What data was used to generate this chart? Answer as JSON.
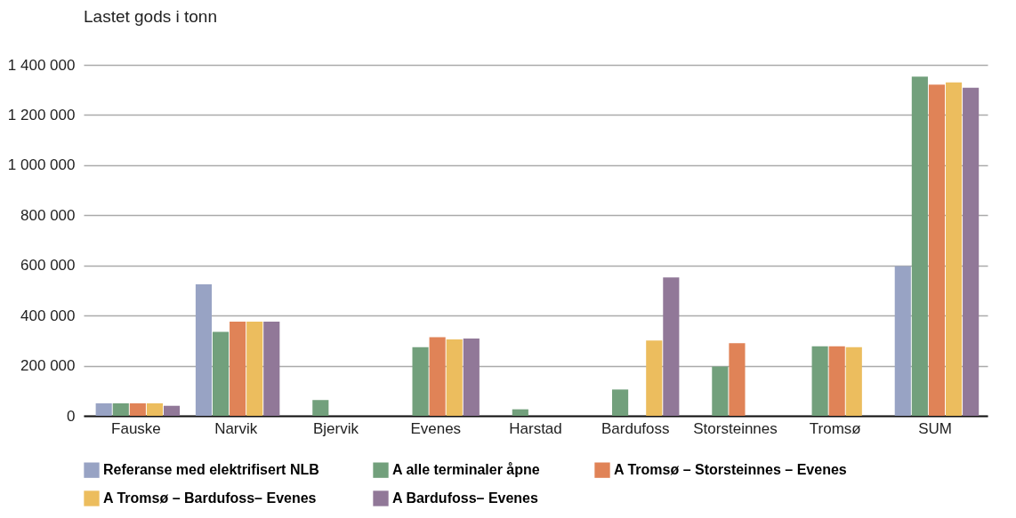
{
  "chart_data": {
    "type": "bar",
    "title": "Lastet gods i tonn",
    "categories": [
      "Fauske",
      "Narvik",
      "Bjervik",
      "Evenes",
      "Harstad",
      "Bardufoss",
      "Storsteinnes",
      "Tromsø",
      "SUM"
    ],
    "series": [
      {
        "name": "Referanse med elektrifisert NLB",
        "color": "#98a3c4",
        "values": [
          50000,
          525000,
          null,
          null,
          null,
          null,
          null,
          null,
          597000
        ]
      },
      {
        "name": "A alle terminaler åpne",
        "color": "#72a07c",
        "values": [
          50000,
          335000,
          63000,
          274000,
          26000,
          105000,
          197000,
          277000,
          1353000
        ]
      },
      {
        "name": "A Tromsø – Storsteinnes – Evenes",
        "color": "#e08357",
        "values": [
          50000,
          376000,
          null,
          314000,
          null,
          null,
          290000,
          277000,
          1321000
        ]
      },
      {
        "name": "A Tromsø – Bardufoss– Evenes",
        "color": "#ecbd5e",
        "values": [
          50000,
          376000,
          null,
          305000,
          null,
          300000,
          null,
          274000,
          1330000
        ]
      },
      {
        "name": "A Bardufoss– Evenes",
        "color": "#917898",
        "values": [
          40000,
          376000,
          null,
          308000,
          null,
          552000,
          null,
          null,
          1309000
        ]
      }
    ],
    "ylim": [
      0,
      1400000
    ],
    "yticks": [
      0,
      {
        "value": 200000,
        "label": "200 000"
      },
      {
        "value": 400000,
        "label": "400 000"
      },
      {
        "value": 600000,
        "label": "600 000"
      },
      {
        "value": 800000,
        "label": "800 000"
      },
      {
        "value": 1000000,
        "label": "1 000 000"
      },
      {
        "value": 1200000,
        "label": "1 200 000"
      },
      {
        "value": 1400000,
        "label": "1 400 000"
      }
    ],
    "grid": "y",
    "legend": "bottom"
  }
}
